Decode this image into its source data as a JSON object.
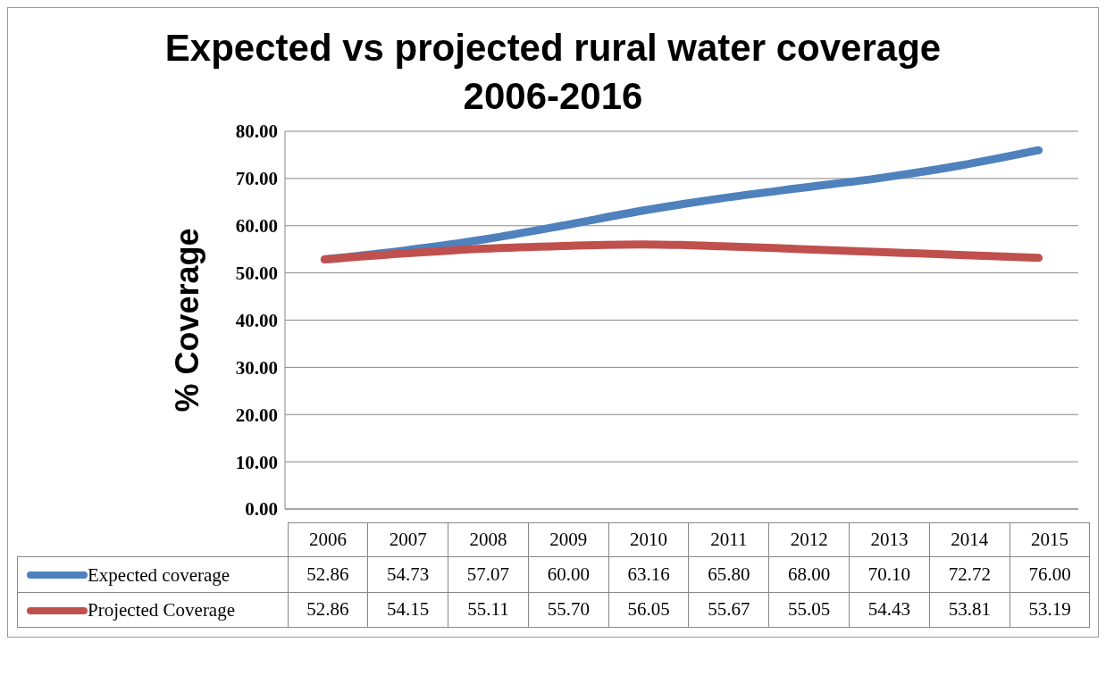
{
  "chart_data": {
    "type": "line",
    "title": "Expected vs projected rural water coverage\n2006-2016",
    "ylabel": "% Coverage",
    "categories": [
      "2006",
      "2007",
      "2008",
      "2009",
      "2010",
      "2011",
      "2012",
      "2013",
      "2014",
      "2015"
    ],
    "series": [
      {
        "name": "Expected coverage",
        "color": "#4f81bd",
        "values": [
          52.86,
          54.73,
          57.07,
          60.0,
          63.16,
          65.8,
          68.0,
          70.1,
          72.72,
          76.0
        ],
        "value_labels": [
          "52.86",
          "54.73",
          "57.07",
          "60.00",
          "63.16",
          "65.80",
          "68.00",
          "70.10",
          "72.72",
          "76.00"
        ]
      },
      {
        "name": "Projected Coverage",
        "color": "#c0504d",
        "values": [
          52.86,
          54.15,
          55.11,
          55.7,
          56.05,
          55.67,
          55.05,
          54.43,
          53.81,
          53.19
        ],
        "value_labels": [
          "52.86",
          "54.15",
          "55.11",
          "55.70",
          "56.05",
          "55.67",
          "55.05",
          "54.43",
          "53.81",
          "53.19"
        ]
      }
    ],
    "ylim": [
      0,
      80
    ],
    "yticks": [
      {
        "value": 0,
        "label": "0.00"
      },
      {
        "value": 10,
        "label": "10.00"
      },
      {
        "value": 20,
        "label": "20.00"
      },
      {
        "value": 30,
        "label": "30.00"
      },
      {
        "value": 40,
        "label": "40.00"
      },
      {
        "value": 50,
        "label": "50.00"
      },
      {
        "value": 60,
        "label": "60.00"
      },
      {
        "value": 70,
        "label": "70.00"
      },
      {
        "value": 80,
        "label": "80.00"
      }
    ],
    "grid": "y",
    "legend": "bottom",
    "marker": "none",
    "line_style": "solid"
  }
}
